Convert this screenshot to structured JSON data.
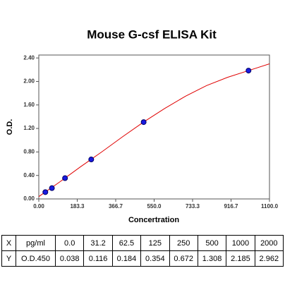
{
  "chart_data": {
    "type": "scatter",
    "title": "Mouse G-csf ELISA Kit",
    "x_label": "Concertration",
    "y_label": "O.D.",
    "xlim": [
      0,
      1100
    ],
    "ylim": [
      0,
      2.45
    ],
    "xticks": [
      {
        "value": 0,
        "label": "0.00"
      },
      183.3,
      366.7,
      {
        "value": 550,
        "label": "550.0"
      },
      733.3,
      916.7,
      {
        "value": 1100,
        "label": "1100.0"
      }
    ],
    "yticks": [
      {
        "value": 0,
        "label": "0.00"
      },
      {
        "value": 0.4,
        "label": "0.40"
      },
      {
        "value": 0.8,
        "label": "0.80"
      },
      {
        "value": 1.2,
        "label": "1.20"
      },
      {
        "value": 1.6,
        "label": "1.60"
      },
      {
        "value": 2.0,
        "label": "2.00"
      },
      {
        "value": 2.4,
        "label": "2.40"
      }
    ],
    "series": [
      {
        "type": "scatter",
        "color": "#1a1ae0",
        "x": [
          31.2,
          62.5,
          125,
          250,
          500,
          1000
        ],
        "values": [
          0.116,
          0.184,
          0.354,
          0.672,
          1.308,
          2.185
        ]
      },
      {
        "type": "line",
        "color": "#e00000",
        "x": [
          0,
          100,
          200,
          300,
          400,
          500,
          600,
          700,
          800,
          900,
          1000,
          1100
        ],
        "values": [
          0.04,
          0.29,
          0.55,
          0.8,
          1.06,
          1.31,
          1.54,
          1.75,
          1.93,
          2.07,
          2.185,
          2.3
        ]
      }
    ]
  },
  "table": {
    "rows": [
      [
        "X",
        "pg/ml",
        "0.0",
        "31.2",
        "62.5",
        "125",
        "250",
        "500",
        "1000",
        "2000"
      ],
      [
        "Y",
        "O.D.450",
        "0.038",
        "0.116",
        "0.184",
        "0.354",
        "0.672",
        "1.308",
        "2.185",
        "2.962"
      ]
    ]
  }
}
